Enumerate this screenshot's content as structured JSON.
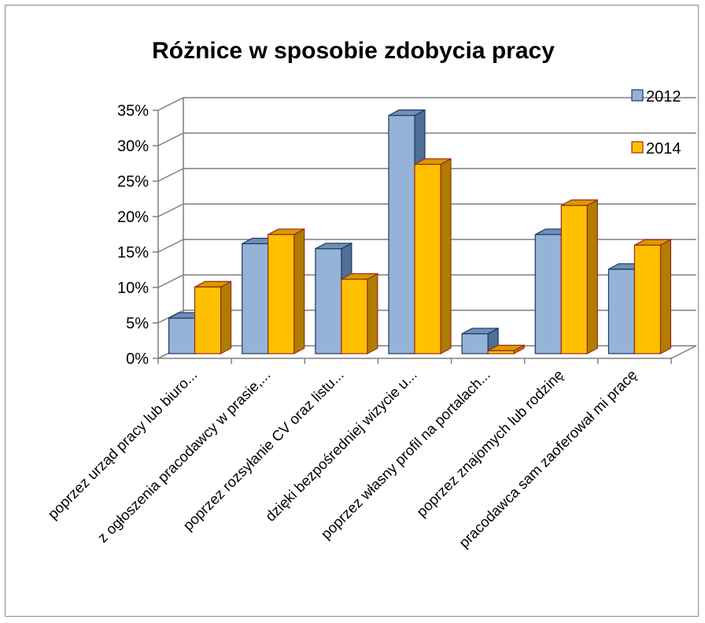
{
  "chart_data": {
    "type": "bar",
    "title": "Różnice w sposobie zdobycia pracy",
    "xlabel": "",
    "ylabel": "",
    "ylim": [
      0,
      0.35
    ],
    "yticks": [
      "0%",
      "5%",
      "10%",
      "15%",
      "20%",
      "25%",
      "30%",
      "35%"
    ],
    "categories": [
      "poprzez urząd pracy lub biuro...",
      "z ogłoszenia pracodawcy w prasie,...",
      "poprzez rozsyłanie CV oraz listu...",
      "dzięki bezpośredniej wizycie u...",
      "poprzez własny profil na portalach...",
      "poprzez znajomych lub rodzinę",
      "pracodawca sam zaoferował mi pracę"
    ],
    "series": [
      {
        "name": "2012",
        "values": [
          0.05,
          0.155,
          0.148,
          0.336,
          0.028,
          0.168,
          0.119
        ]
      },
      {
        "name": "2014",
        "values": [
          0.094,
          0.168,
          0.105,
          0.267,
          0.004,
          0.209,
          0.153
        ]
      }
    ],
    "legend_position": "right",
    "grid": true,
    "colors": {
      "s2012_front": "#95b3d7",
      "s2012_side": "#4f6f96",
      "s2012_top": "#6d8fb8",
      "s2012_stroke": "#1f3864",
      "s2014_front": "#ffc000",
      "s2014_side": "#b07d00",
      "s2014_top": "#d89a00",
      "s2014_stroke": "#9c2a1a",
      "grid": "#7f7f7f",
      "axis": "#7f7f7f"
    }
  }
}
